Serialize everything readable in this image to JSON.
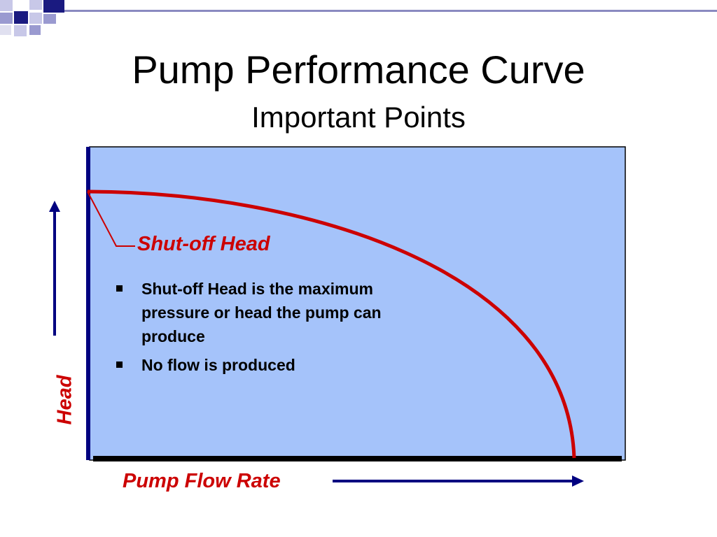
{
  "slide": {
    "title": "Pump Performance Curve",
    "subtitle": "Important Points"
  },
  "diagram": {
    "callout_label": "Shut-off Head",
    "bullets": [
      "Shut-off Head is the maximum pressure or head the pump can produce",
      "No flow is produced"
    ],
    "y_axis_label": "Head",
    "x_axis_label": "Pump Flow Rate"
  },
  "colors": {
    "plot_background": "#a5c3fa",
    "curve": "#cc0000",
    "axis_accent": "#000080",
    "label_text": "#cc0000"
  }
}
